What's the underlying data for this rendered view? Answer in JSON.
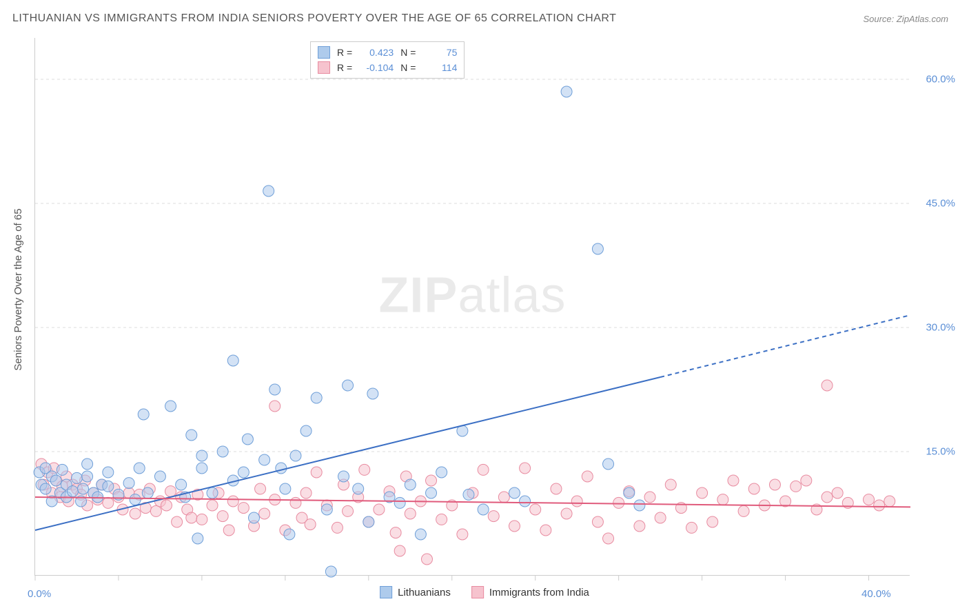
{
  "title": "LITHUANIAN VS IMMIGRANTS FROM INDIA SENIORS POVERTY OVER THE AGE OF 65 CORRELATION CHART",
  "source": "Source: ZipAtlas.com",
  "y_axis_label": "Seniors Poverty Over the Age of 65",
  "watermark": {
    "bold": "ZIP",
    "light": "atlas"
  },
  "chart": {
    "type": "scatter",
    "background_color": "#ffffff",
    "grid_color": "#dddddd",
    "axis_color": "#cccccc",
    "x_range": [
      0,
      42
    ],
    "y_range": [
      0,
      65
    ],
    "x_ticks": [
      0,
      40
    ],
    "x_tick_labels": [
      "0.0%",
      "40.0%"
    ],
    "x_minor_ticks": [
      4,
      8,
      12,
      16,
      20,
      24,
      28,
      32,
      36
    ],
    "y_ticks": [
      15,
      30,
      45,
      60
    ],
    "y_tick_labels": [
      "15.0%",
      "30.0%",
      "45.0%",
      "60.0%"
    ],
    "tick_label_color": "#5b8fd6",
    "tick_label_fontsize": 15,
    "marker_radius": 8,
    "marker_opacity": 0.55,
    "series": [
      {
        "name": "Lithuanians",
        "color_fill": "#aecbec",
        "color_stroke": "#6f9fd8",
        "r_value": "0.423",
        "n_value": "75",
        "trend": {
          "x1": 0,
          "y1": 5.5,
          "x2": 30,
          "y2": 24,
          "dash_x": 30,
          "dash_x2": 42,
          "dash_y2": 31.5,
          "stroke": "#3b6fc4",
          "width": 2
        },
        "points": [
          [
            0.2,
            12.5
          ],
          [
            0.3,
            11.0
          ],
          [
            0.5,
            13.0
          ],
          [
            0.5,
            10.5
          ],
          [
            0.8,
            12.0
          ],
          [
            0.8,
            9.0
          ],
          [
            1.0,
            11.5
          ],
          [
            1.2,
            10.0
          ],
          [
            1.3,
            12.8
          ],
          [
            1.5,
            9.5
          ],
          [
            1.5,
            11.0
          ],
          [
            1.8,
            10.2
          ],
          [
            2.0,
            11.8
          ],
          [
            2.2,
            9.0
          ],
          [
            2.3,
            10.5
          ],
          [
            2.5,
            12.0
          ],
          [
            2.5,
            13.5
          ],
          [
            2.8,
            10.0
          ],
          [
            3.0,
            9.5
          ],
          [
            3.2,
            11.0
          ],
          [
            3.5,
            10.8
          ],
          [
            3.5,
            12.5
          ],
          [
            4.0,
            9.8
          ],
          [
            4.5,
            11.2
          ],
          [
            4.8,
            9.2
          ],
          [
            5.0,
            13.0
          ],
          [
            5.2,
            19.5
          ],
          [
            5.4,
            10.0
          ],
          [
            6.0,
            12.0
          ],
          [
            6.5,
            20.5
          ],
          [
            7.0,
            11.0
          ],
          [
            7.2,
            9.5
          ],
          [
            7.5,
            17.0
          ],
          [
            7.8,
            4.5
          ],
          [
            8.0,
            14.5
          ],
          [
            8.0,
            13.0
          ],
          [
            8.5,
            10.0
          ],
          [
            9.0,
            15.0
          ],
          [
            9.5,
            26.0
          ],
          [
            9.5,
            11.5
          ],
          [
            10.0,
            12.5
          ],
          [
            10.2,
            16.5
          ],
          [
            10.5,
            7.0
          ],
          [
            11.0,
            14.0
          ],
          [
            11.2,
            46.5
          ],
          [
            11.5,
            22.5
          ],
          [
            11.8,
            13.0
          ],
          [
            12.0,
            10.5
          ],
          [
            12.2,
            5.0
          ],
          [
            12.5,
            14.5
          ],
          [
            13.0,
            17.5
          ],
          [
            13.5,
            21.5
          ],
          [
            14.0,
            8.0
          ],
          [
            14.2,
            0.5
          ],
          [
            14.8,
            12.0
          ],
          [
            15.0,
            23.0
          ],
          [
            15.5,
            10.5
          ],
          [
            16.0,
            6.5
          ],
          [
            16.2,
            22.0
          ],
          [
            17.0,
            9.5
          ],
          [
            17.5,
            8.8
          ],
          [
            18.0,
            11.0
          ],
          [
            18.5,
            5.0
          ],
          [
            19.0,
            10.0
          ],
          [
            19.5,
            12.5
          ],
          [
            20.5,
            17.5
          ],
          [
            20.8,
            9.8
          ],
          [
            21.5,
            8.0
          ],
          [
            23.0,
            10.0
          ],
          [
            23.5,
            9.0
          ],
          [
            25.5,
            58.5
          ],
          [
            27.0,
            39.5
          ],
          [
            27.5,
            13.5
          ],
          [
            28.5,
            10.0
          ],
          [
            29.0,
            8.5
          ]
        ]
      },
      {
        "name": "Immigrants from India",
        "color_fill": "#f6c3ce",
        "color_stroke": "#e88ba0",
        "r_value": "-0.104",
        "n_value": "114",
        "trend": {
          "x1": 0,
          "y1": 9.5,
          "x2": 42,
          "y2": 8.3,
          "stroke": "#e05a7b",
          "width": 2
        },
        "points": [
          [
            0.3,
            13.5
          ],
          [
            0.4,
            11.0
          ],
          [
            0.6,
            12.5
          ],
          [
            0.8,
            10.0
          ],
          [
            0.9,
            13.0
          ],
          [
            1.0,
            11.5
          ],
          [
            1.2,
            9.5
          ],
          [
            1.3,
            10.8
          ],
          [
            1.5,
            12.0
          ],
          [
            1.6,
            9.0
          ],
          [
            1.8,
            11.0
          ],
          [
            2.0,
            10.5
          ],
          [
            2.2,
            9.8
          ],
          [
            2.4,
            11.5
          ],
          [
            2.5,
            8.5
          ],
          [
            2.8,
            10.0
          ],
          [
            3.0,
            9.2
          ],
          [
            3.2,
            11.0
          ],
          [
            3.5,
            8.8
          ],
          [
            3.8,
            10.5
          ],
          [
            4.0,
            9.5
          ],
          [
            4.2,
            8.0
          ],
          [
            4.5,
            10.0
          ],
          [
            4.8,
            7.5
          ],
          [
            5.0,
            9.8
          ],
          [
            5.3,
            8.2
          ],
          [
            5.5,
            10.5
          ],
          [
            5.8,
            7.8
          ],
          [
            6.0,
            9.0
          ],
          [
            6.3,
            8.5
          ],
          [
            6.5,
            10.2
          ],
          [
            6.8,
            6.5
          ],
          [
            7.0,
            9.5
          ],
          [
            7.3,
            8.0
          ],
          [
            7.5,
            7.0
          ],
          [
            7.8,
            9.8
          ],
          [
            8.0,
            6.8
          ],
          [
            8.5,
            8.5
          ],
          [
            8.8,
            10.0
          ],
          [
            9.0,
            7.2
          ],
          [
            9.3,
            5.5
          ],
          [
            9.5,
            9.0
          ],
          [
            10.0,
            8.2
          ],
          [
            10.5,
            6.0
          ],
          [
            10.8,
            10.5
          ],
          [
            11.0,
            7.5
          ],
          [
            11.5,
            9.2
          ],
          [
            11.5,
            20.5
          ],
          [
            12.0,
            5.5
          ],
          [
            12.5,
            8.8
          ],
          [
            12.8,
            7.0
          ],
          [
            13.0,
            10.0
          ],
          [
            13.2,
            6.2
          ],
          [
            13.5,
            12.5
          ],
          [
            14.0,
            8.5
          ],
          [
            14.5,
            5.8
          ],
          [
            14.8,
            11.0
          ],
          [
            15.0,
            7.8
          ],
          [
            15.5,
            9.5
          ],
          [
            15.8,
            12.8
          ],
          [
            16.0,
            6.5
          ],
          [
            16.5,
            8.0
          ],
          [
            17.0,
            10.2
          ],
          [
            17.3,
            5.2
          ],
          [
            17.5,
            3.0
          ],
          [
            17.8,
            12.0
          ],
          [
            18.0,
            7.5
          ],
          [
            18.5,
            9.0
          ],
          [
            18.8,
            2.0
          ],
          [
            19.0,
            11.5
          ],
          [
            19.5,
            6.8
          ],
          [
            20.0,
            8.5
          ],
          [
            20.5,
            5.0
          ],
          [
            21.0,
            10.0
          ],
          [
            21.5,
            12.8
          ],
          [
            22.0,
            7.2
          ],
          [
            22.5,
            9.5
          ],
          [
            23.0,
            6.0
          ],
          [
            23.5,
            13.0
          ],
          [
            24.0,
            8.0
          ],
          [
            24.5,
            5.5
          ],
          [
            25.0,
            10.5
          ],
          [
            25.5,
            7.5
          ],
          [
            26.0,
            9.0
          ],
          [
            26.5,
            12.0
          ],
          [
            27.0,
            6.5
          ],
          [
            27.5,
            4.5
          ],
          [
            28.0,
            8.8
          ],
          [
            28.5,
            10.2
          ],
          [
            29.0,
            6.0
          ],
          [
            29.5,
            9.5
          ],
          [
            30.0,
            7.0
          ],
          [
            30.5,
            11.0
          ],
          [
            31.0,
            8.2
          ],
          [
            31.5,
            5.8
          ],
          [
            32.0,
            10.0
          ],
          [
            32.5,
            6.5
          ],
          [
            33.0,
            9.2
          ],
          [
            33.5,
            11.5
          ],
          [
            34.0,
            7.8
          ],
          [
            34.5,
            10.5
          ],
          [
            35.0,
            8.5
          ],
          [
            35.5,
            11.0
          ],
          [
            36.0,
            9.0
          ],
          [
            36.5,
            10.8
          ],
          [
            37.0,
            11.5
          ],
          [
            37.5,
            8.0
          ],
          [
            38.0,
            9.5
          ],
          [
            38.5,
            10.0
          ],
          [
            38.0,
            23.0
          ],
          [
            39.0,
            8.8
          ],
          [
            40.0,
            9.2
          ],
          [
            40.5,
            8.5
          ],
          [
            41.0,
            9.0
          ]
        ]
      }
    ]
  },
  "legend_top": {
    "r_label": "R =",
    "n_label": "N ="
  },
  "legend_bottom": [
    {
      "label": "Lithuanians",
      "fill": "#aecbec",
      "stroke": "#6f9fd8"
    },
    {
      "label": "Immigrants from India",
      "fill": "#f6c3ce",
      "stroke": "#e88ba0"
    }
  ]
}
